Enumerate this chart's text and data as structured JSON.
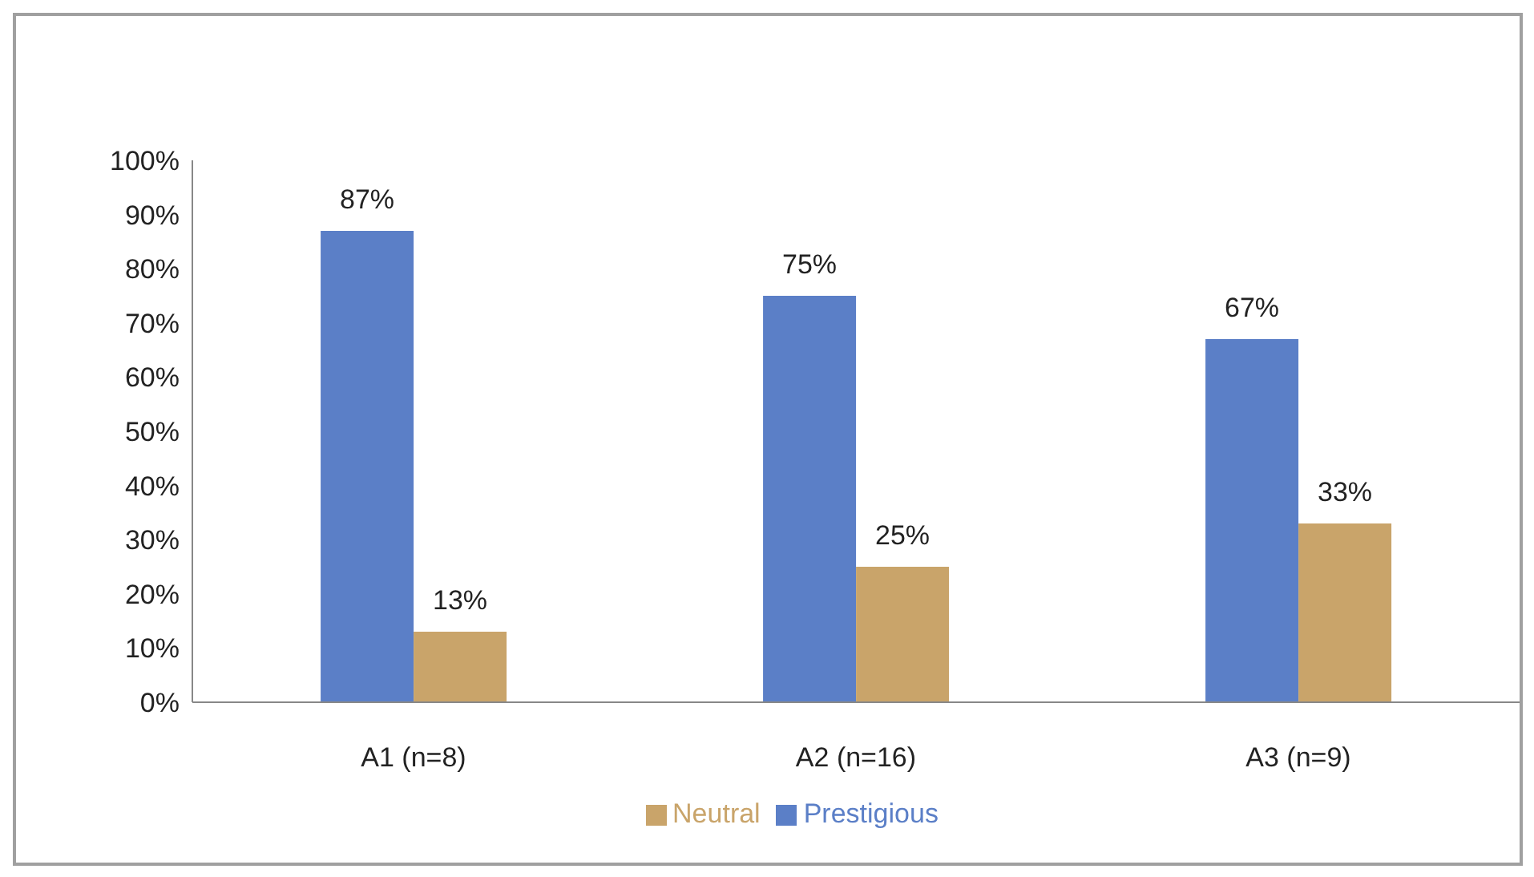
{
  "chart_data": {
    "type": "bar",
    "categories": [
      "A1 (n=8)",
      "A2 (n=16)",
      "A3 (n=9)"
    ],
    "series": [
      {
        "name": "Prestigious",
        "color": "#5b7fc7",
        "values": [
          87,
          75,
          67
        ],
        "value_labels": [
          "87%",
          "75%",
          "67%"
        ]
      },
      {
        "name": "Neutral",
        "color": "#c9a46a",
        "values": [
          13,
          25,
          33
        ],
        "value_labels": [
          "13%",
          "25%",
          "33%"
        ]
      }
    ],
    "ylim": [
      0,
      100
    ],
    "yticks": [
      {
        "value": 0,
        "label": "0%"
      },
      {
        "value": 10,
        "label": "10%"
      },
      {
        "value": 20,
        "label": "20%"
      },
      {
        "value": 30,
        "label": "30%"
      },
      {
        "value": 40,
        "label": "40%"
      },
      {
        "value": 50,
        "label": "50%"
      },
      {
        "value": 60,
        "label": "60%"
      },
      {
        "value": 70,
        "label": "70%"
      },
      {
        "value": 80,
        "label": "80%"
      },
      {
        "value": 90,
        "label": "90%"
      },
      {
        "value": 100,
        "label": "100%"
      }
    ],
    "legend": "bottom"
  }
}
